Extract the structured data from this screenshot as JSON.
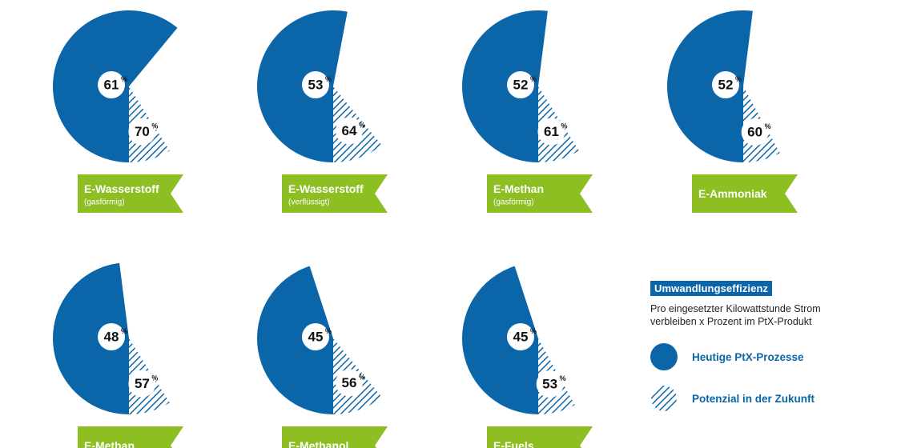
{
  "chart_data": {
    "type": "pie",
    "colors": {
      "today": "#0a66a8",
      "future_hatch": "#0a66a8",
      "label_flag": "#8dbe22"
    },
    "legend_title": "Umwandlungseffizienz",
    "legend_description": "Pro eingesetzter Kilowattstunde Strom verbleiben x Prozent im PtX-Produkt",
    "series": [
      {
        "name": "Heutige PtX-Prozesse"
      },
      {
        "name": "Potenzial in der Zukunft"
      }
    ],
    "items": [
      {
        "label": "E-Wasserstoff",
        "sublabel": "(gasförmig)",
        "today": 61,
        "future": 70
      },
      {
        "label": "E-Wasserstoff",
        "sublabel": "(verflüssigt)",
        "today": 53,
        "future": 64
      },
      {
        "label": "E-Methan",
        "sublabel": "(gasförmig)",
        "today": 52,
        "future": 61
      },
      {
        "label": "E-Ammoniak",
        "sublabel": "",
        "today": 52,
        "future": 60
      },
      {
        "label": "E-Methan",
        "sublabel": "",
        "today": 48,
        "future": 57
      },
      {
        "label": "E-Methanol",
        "sublabel": "",
        "today": 45,
        "future": 56
      },
      {
        "label": "E-Fuels",
        "sublabel": "",
        "today": 45,
        "future": 53
      }
    ],
    "value_suffix": "%"
  }
}
